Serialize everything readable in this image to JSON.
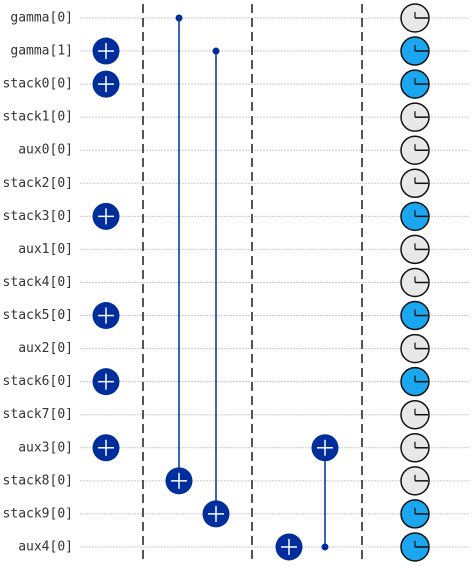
{
  "qubits": [
    "gamma[0]",
    "gamma[1]",
    "stack0[0]",
    "stack1[0]",
    "aux0[0]",
    "stack2[0]",
    "stack3[0]",
    "aux1[0]",
    "stack4[0]",
    "stack5[0]",
    "aux2[0]",
    "stack6[0]",
    "stack7[0]",
    "aux3[0]",
    "stack8[0]",
    "stack9[0]",
    "aux4[0]"
  ]
}
